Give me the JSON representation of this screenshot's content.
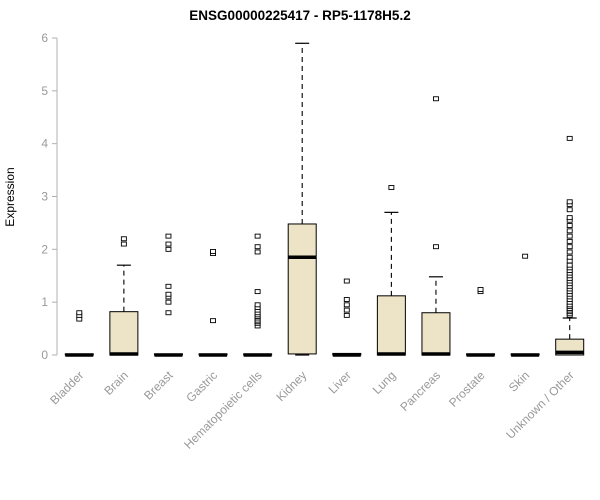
{
  "chart_data": {
    "type": "boxplot",
    "title": "ENSG00000225417 - RP5-1178H5.2",
    "ylabel": "Expression",
    "ylim": [
      0,
      6
    ],
    "yticks": [
      0,
      1,
      2,
      3,
      4,
      5,
      6
    ],
    "box_fill": "#ede3c6",
    "box_stroke": "#000000",
    "median_color": "#000000",
    "whisker_color": "#000000",
    "axis_color": "#b0b0b0",
    "label_color": "#999999",
    "title_color": "#000000",
    "categories": [
      "Bladder",
      "Brain",
      "Breast",
      "Gastric",
      "Hematopoietic cells",
      "Kidney",
      "Liver",
      "Lung",
      "Pancreas",
      "Prostate",
      "Skin",
      "Unknown / Other"
    ],
    "boxes": [
      {
        "category": "Bladder",
        "q1": 0,
        "median": 0,
        "q3": 0.02,
        "whisker_low": 0,
        "whisker_high": 0.02,
        "outliers": [
          0.68,
          0.75,
          0.8
        ]
      },
      {
        "category": "Brain",
        "q1": 0,
        "median": 0.02,
        "q3": 0.82,
        "whisker_low": 0,
        "whisker_high": 1.7,
        "outliers": [
          2.1,
          2.2
        ]
      },
      {
        "category": "Breast",
        "q1": 0,
        "median": 0,
        "q3": 0.02,
        "whisker_low": 0,
        "whisker_high": 0.02,
        "outliers": [
          0.8,
          1.0,
          1.1,
          1.15,
          1.3,
          2.0,
          2.1,
          2.25
        ]
      },
      {
        "category": "Gastric",
        "q1": 0,
        "median": 0,
        "q3": 0.02,
        "whisker_low": 0,
        "whisker_high": 0.02,
        "outliers": [
          0.65,
          1.92,
          1.96
        ]
      },
      {
        "category": "Hematopoietic cells",
        "q1": 0,
        "median": 0,
        "q3": 0.02,
        "whisker_low": 0,
        "whisker_high": 0.02,
        "outliers": [
          0.55,
          0.6,
          0.63,
          0.66,
          0.7,
          0.73,
          0.76,
          0.8,
          0.85,
          0.9,
          0.95,
          1.2,
          1.95,
          2.05,
          2.25
        ]
      },
      {
        "category": "Kidney",
        "q1": 0.02,
        "median": 1.85,
        "q3": 2.48,
        "whisker_low": 0,
        "whisker_high": 5.9,
        "outliers": []
      },
      {
        "category": "Liver",
        "q1": 0,
        "median": 0,
        "q3": 0.03,
        "whisker_low": 0,
        "whisker_high": 0.03,
        "outliers": [
          0.75,
          0.85,
          0.95,
          1.05,
          1.4
        ]
      },
      {
        "category": "Lung",
        "q1": 0,
        "median": 0.02,
        "q3": 1.12,
        "whisker_low": 0,
        "whisker_high": 2.7,
        "outliers": [
          3.17
        ]
      },
      {
        "category": "Pancreas",
        "q1": 0,
        "median": 0.02,
        "q3": 0.8,
        "whisker_low": 0,
        "whisker_high": 1.48,
        "outliers": [
          2.05,
          4.85
        ]
      },
      {
        "category": "Prostate",
        "q1": 0,
        "median": 0,
        "q3": 0.02,
        "whisker_low": 0,
        "whisker_high": 0.02,
        "outliers": [
          1.2,
          1.24
        ]
      },
      {
        "category": "Skin",
        "q1": 0,
        "median": 0,
        "q3": 0.02,
        "whisker_low": 0,
        "whisker_high": 0.02,
        "outliers": [
          1.87
        ]
      },
      {
        "category": "Unknown / Other",
        "q1": 0,
        "median": 0.05,
        "q3": 0.3,
        "whisker_low": 0,
        "whisker_high": 0.7,
        "outliers": [
          0.75,
          0.78,
          0.82,
          0.85,
          0.88,
          0.92,
          0.95,
          1.0,
          1.05,
          1.1,
          1.15,
          1.2,
          1.25,
          1.3,
          1.35,
          1.4,
          1.45,
          1.5,
          1.55,
          1.6,
          1.65,
          1.7,
          1.78,
          1.85,
          1.95,
          2.05,
          2.15,
          2.25,
          2.35,
          2.45,
          2.55,
          2.6,
          2.75,
          2.85,
          2.9,
          4.1
        ]
      }
    ]
  }
}
